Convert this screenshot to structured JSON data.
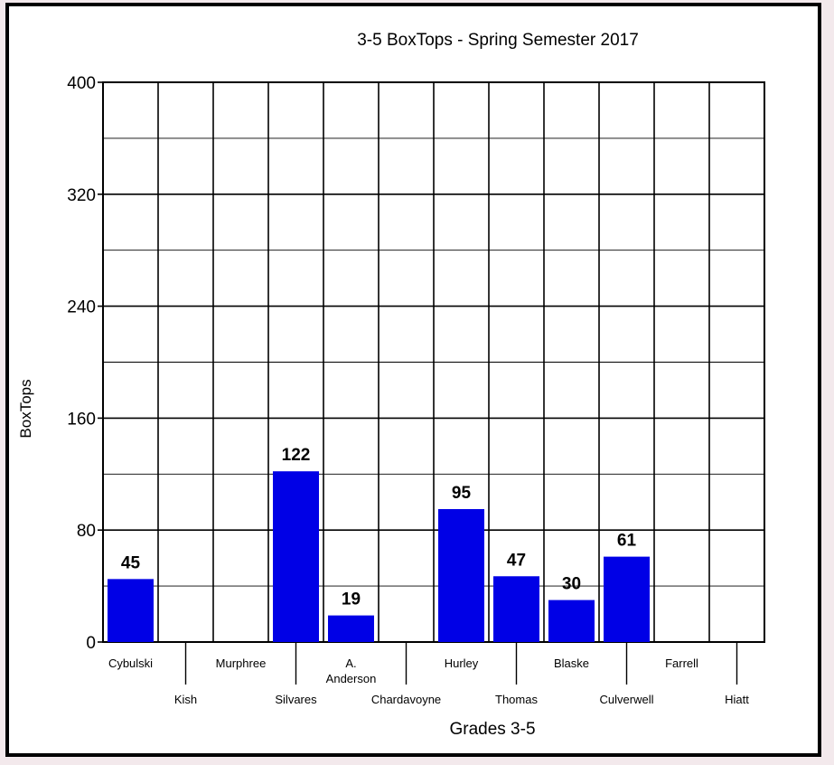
{
  "chart_data": {
    "type": "bar",
    "title": "3-5 BoxTops - Spring Semester 2017",
    "xlabel": "Grades 3-5",
    "ylabel": "BoxTops",
    "ylim": [
      0,
      400
    ],
    "yticks": [
      0,
      80,
      160,
      240,
      320,
      400
    ],
    "grid": true,
    "colors": {
      "bar": "#0000e6",
      "grid": "#000000"
    },
    "categories": [
      "Cybulski",
      "Kish",
      "Murphree",
      "Silvares",
      "A. Anderson",
      "Chardavoyne",
      "Hurley",
      "Thomas",
      "Blaske",
      "Culverwell",
      "Farrell",
      "Hiatt"
    ],
    "category_lines": [
      [
        "Cybulski"
      ],
      [
        "Kish"
      ],
      [
        "Murphree"
      ],
      [
        "Silvares"
      ],
      [
        "A.",
        "Anderson"
      ],
      [
        "Chardavoyne"
      ],
      [
        "Hurley"
      ],
      [
        "Thomas"
      ],
      [
        "Blaske"
      ],
      [
        "Culverwell"
      ],
      [
        "Farrell"
      ],
      [
        "Hiatt"
      ]
    ],
    "values": [
      45,
      0,
      0,
      122,
      19,
      0,
      95,
      47,
      30,
      61,
      0,
      0
    ],
    "data_labels": [
      "45",
      "",
      "",
      "122",
      "19",
      "",
      "95",
      "47",
      "30",
      "61",
      "",
      ""
    ]
  }
}
